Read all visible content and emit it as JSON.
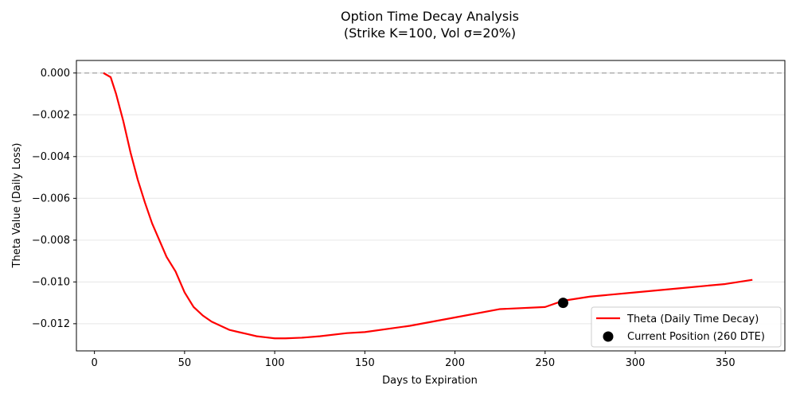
{
  "chart_data": {
    "type": "line",
    "title": "Option Time Decay Analysis",
    "subtitle": "(Strike K=100, Vol σ=20%)",
    "xlabel": "Days to Expiration",
    "ylabel": "Theta Value (Daily Loss)",
    "xlim": [
      -10,
      383
    ],
    "ylim": [
      -0.0133,
      0.0006
    ],
    "x_ticks": [
      0,
      50,
      100,
      150,
      200,
      250,
      300,
      350
    ],
    "y_ticks": [
      0.0,
      -0.002,
      -0.004,
      -0.006,
      -0.008,
      -0.01,
      -0.012
    ],
    "x_tick_labels": [
      "0",
      "50",
      "100",
      "150",
      "200",
      "250",
      "300",
      "350"
    ],
    "y_tick_labels": [
      "0.000",
      "−0.002",
      "−0.004",
      "−0.006",
      "−0.008",
      "−0.010",
      "−0.012"
    ],
    "grid": "horizontal",
    "legend_position": "lower-right",
    "reference_line": {
      "y": 0.0,
      "style": "dashed",
      "color": "#b0b0b0"
    },
    "series": [
      {
        "name": "Theta (Daily Time Decay)",
        "type": "line",
        "color": "#ff0000",
        "x": [
          5,
          9,
          12,
          16,
          20,
          24,
          28,
          32,
          36,
          40,
          45,
          50,
          55,
          60,
          65,
          70,
          75,
          80,
          85,
          90,
          95,
          100,
          106,
          115,
          125,
          140,
          150,
          175,
          200,
          225,
          250,
          260,
          275,
          300,
          325,
          350,
          365
        ],
        "y": [
          0.0,
          -0.0002,
          -0.001,
          -0.0023,
          -0.0038,
          -0.0051,
          -0.0062,
          -0.0072,
          -0.008,
          -0.0088,
          -0.0095,
          -0.0105,
          -0.0112,
          -0.0116,
          -0.0119,
          -0.0121,
          -0.0123,
          -0.0124,
          -0.0125,
          -0.0126,
          -0.01265,
          -0.0127,
          -0.0127,
          -0.01267,
          -0.0126,
          -0.01245,
          -0.0124,
          -0.0121,
          -0.0117,
          -0.0113,
          -0.0112,
          -0.0109,
          -0.0107,
          -0.0105,
          -0.0103,
          -0.0101,
          -0.0099
        ]
      },
      {
        "name": "Current Position (260 DTE)",
        "type": "scatter",
        "color": "#000000",
        "x": [
          260
        ],
        "y": [
          -0.011
        ]
      }
    ]
  }
}
